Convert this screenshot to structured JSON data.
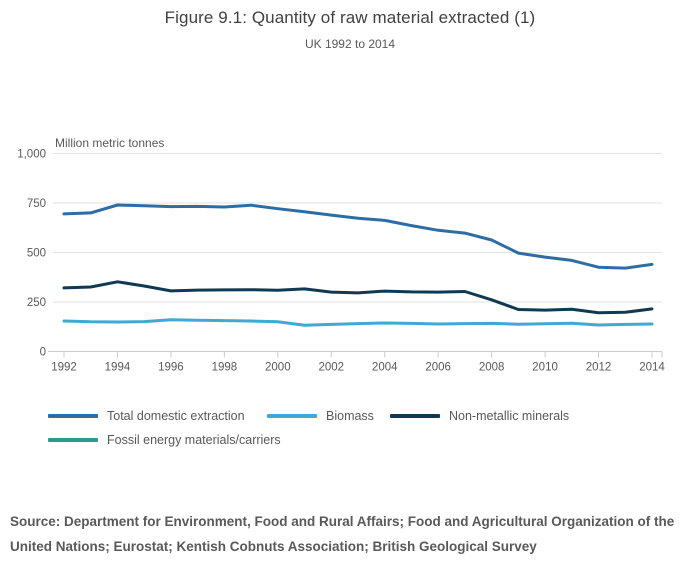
{
  "header": {
    "title": "Figure 9.1: Quantity of raw material extracted (1)",
    "subtitle": "UK 1992 to 2014"
  },
  "axis_unit_label": "Million metric tonnes",
  "source": "Source: Department for Environment, Food and Rural Affairs; Food and Agricultural Organization of the United Nations; Eurostat; Kentish Cobnuts Association; British Geological Survey",
  "chart_data": {
    "type": "line",
    "title": "Figure 9.1: Quantity of raw material extracted (1)",
    "subtitle": "UK 1992 to 2014",
    "xlabel": "",
    "ylabel": "Million metric tonnes",
    "ylim": [
      0,
      1000
    ],
    "yticks": [
      0,
      250,
      500,
      750,
      1000
    ],
    "ytick_labels": [
      "0",
      "250",
      "500",
      "750",
      "1,000"
    ],
    "x": [
      1992,
      1993,
      1994,
      1995,
      1996,
      1997,
      1998,
      1999,
      2000,
      2001,
      2002,
      2003,
      2004,
      2005,
      2006,
      2007,
      2008,
      2009,
      2010,
      2011,
      2012,
      2013,
      2014
    ],
    "xtick_labels": [
      "1992",
      "1994",
      "1996",
      "1998",
      "2000",
      "2002",
      "2004",
      "2006",
      "2008",
      "2010",
      "2012",
      "2014"
    ],
    "xticks": [
      1992,
      1994,
      1996,
      1998,
      2000,
      2002,
      2004,
      2006,
      2008,
      2010,
      2012,
      2014
    ],
    "grid": true,
    "legend_position": "bottom",
    "series": [
      {
        "name": "Total domestic extraction",
        "color": "#2e6da4",
        "values": [
          695,
          700,
          740,
          736,
          732,
          733,
          730,
          739,
          721,
          706,
          689,
          673,
          662,
          636,
          612,
          598,
          563,
          497,
          477,
          460,
          426,
          421,
          440
        ]
      },
      {
        "name": "Biomass",
        "color": "#3fa9d5",
        "values": [
          154,
          150,
          149,
          151,
          160,
          158,
          156,
          154,
          150,
          133,
          137,
          141,
          144,
          142,
          139,
          141,
          142,
          138,
          140,
          143,
          134,
          137,
          139
        ]
      },
      {
        "name": "Non-metallic minerals",
        "color": "#0f3a52",
        "values": [
          321,
          326,
          352,
          331,
          306,
          310,
          311,
          312,
          309,
          316,
          300,
          296,
          305,
          301,
          300,
          303,
          261,
          212,
          209,
          213,
          196,
          198,
          215
        ]
      },
      {
        "name": "Fossil energy materials/carriers",
        "color": "#2a9c8e",
        "values": null,
        "note": "legend entry only; no separate line visible in plot area"
      }
    ]
  },
  "style": {
    "grid_color": "#e2e2e2",
    "axis_color": "#c3cdd6",
    "tick_label_color": "#595959"
  }
}
